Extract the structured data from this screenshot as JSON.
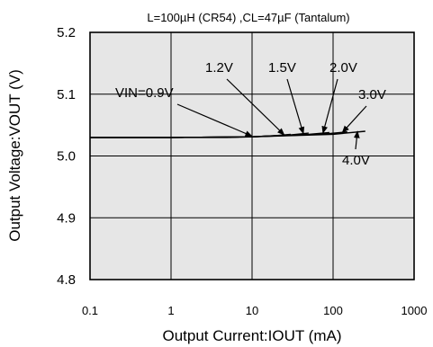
{
  "chart_data": {
    "type": "line",
    "title": "",
    "condition_note": "L=100µH (CR54) ,CL=47µF (Tantalum)",
    "xlabel": "Output Current:IOUT (mA)",
    "ylabel": "Output Voltage:VOUT (V)",
    "xscale": "log",
    "xlim": [
      0.1,
      1000
    ],
    "ylim": [
      4.8,
      5.2
    ],
    "xticks": [
      "0.1",
      "1",
      "10",
      "100",
      "1000"
    ],
    "yticks": [
      "5.2",
      "5.1",
      "5.0",
      "4.9",
      "4.8"
    ],
    "grid": true,
    "background_color": "#e6e6e6",
    "line_color": "#000000",
    "series": [
      {
        "name": "VIN=0.9V",
        "x": [
          0.1,
          1,
          5,
          10,
          15
        ],
        "y": [
          5.03,
          5.03,
          5.03,
          5.031,
          5.032
        ]
      },
      {
        "name": "1.2V",
        "x": [
          0.1,
          1,
          10,
          20,
          30
        ],
        "y": [
          5.03,
          5.03,
          5.031,
          5.033,
          5.035
        ]
      },
      {
        "name": "1.5V",
        "x": [
          0.1,
          1,
          10,
          30,
          50
        ],
        "y": [
          5.03,
          5.03,
          5.031,
          5.034,
          5.037
        ]
      },
      {
        "name": "2.0V",
        "x": [
          0.1,
          1,
          10,
          50,
          90
        ],
        "y": [
          5.03,
          5.03,
          5.031,
          5.035,
          5.038
        ]
      },
      {
        "name": "3.0V",
        "x": [
          0.1,
          1,
          10,
          70,
          150
        ],
        "y": [
          5.03,
          5.03,
          5.031,
          5.035,
          5.039
        ]
      },
      {
        "name": "4.0V",
        "x": [
          0.1,
          1,
          10,
          100,
          250
        ],
        "y": [
          5.03,
          5.03,
          5.031,
          5.035,
          5.04
        ]
      }
    ],
    "annotations": [
      {
        "text": "VIN=0.9V",
        "series": "VIN=0.9V",
        "x": 10,
        "y": 5.032
      },
      {
        "text": "1.2V",
        "series": "1.2V",
        "x": 25,
        "y": 5.034
      },
      {
        "text": "1.5V",
        "series": "1.5V",
        "x": 43,
        "y": 5.036
      },
      {
        "text": "2.0V",
        "series": "2.0V",
        "x": 75,
        "y": 5.037
      },
      {
        "text": "3.0V",
        "series": "3.0V",
        "x": 130,
        "y": 5.038
      },
      {
        "text": "4.0V",
        "series": "4.0V",
        "x": 200,
        "y": 5.04
      }
    ]
  }
}
